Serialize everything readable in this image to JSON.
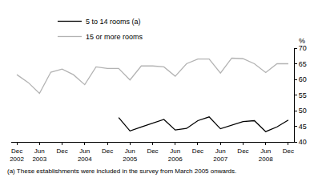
{
  "chart_data": {
    "type": "line",
    "ylabel": "%",
    "categories": [
      "Dec 2002",
      null,
      "Jun 2003",
      null,
      "Dec",
      null,
      "Jun 2004",
      null,
      "Dec",
      null,
      "Jun 2005",
      null,
      "Dec",
      null,
      "Jun 2006",
      null,
      "Dec",
      null,
      "Jun 2007",
      null,
      "Dec",
      null,
      "Jun 2008",
      null,
      "Dec"
    ],
    "series": [
      {
        "name": "5 to 14 rooms (a)",
        "color": "#000000",
        "values": [
          null,
          null,
          null,
          null,
          null,
          null,
          null,
          null,
          null,
          47.8,
          43.5,
          44.8,
          46.0,
          47.2,
          43.8,
          44.3,
          46.8,
          48.0,
          44.2,
          45.3,
          46.5,
          46.8,
          43.3,
          44.8,
          47.0
        ]
      },
      {
        "name": "15 or more rooms",
        "color": "#b3b3b3",
        "values": [
          61.5,
          59.0,
          55.5,
          62.3,
          63.3,
          61.5,
          58.3,
          64.0,
          63.5,
          63.5,
          59.8,
          64.3,
          64.3,
          64.0,
          61.0,
          65.0,
          66.5,
          66.5,
          62.0,
          66.8,
          66.6,
          65.0,
          62.2,
          65.0,
          65.0
        ]
      }
    ],
    "ylim": [
      40,
      70
    ],
    "yticks": [
      40,
      45,
      50,
      55,
      60,
      65,
      70
    ],
    "grid": false,
    "legend": "top-left",
    "annotations": [
      "(a) These establishments were included in the survey from March 2005 onwards."
    ]
  }
}
